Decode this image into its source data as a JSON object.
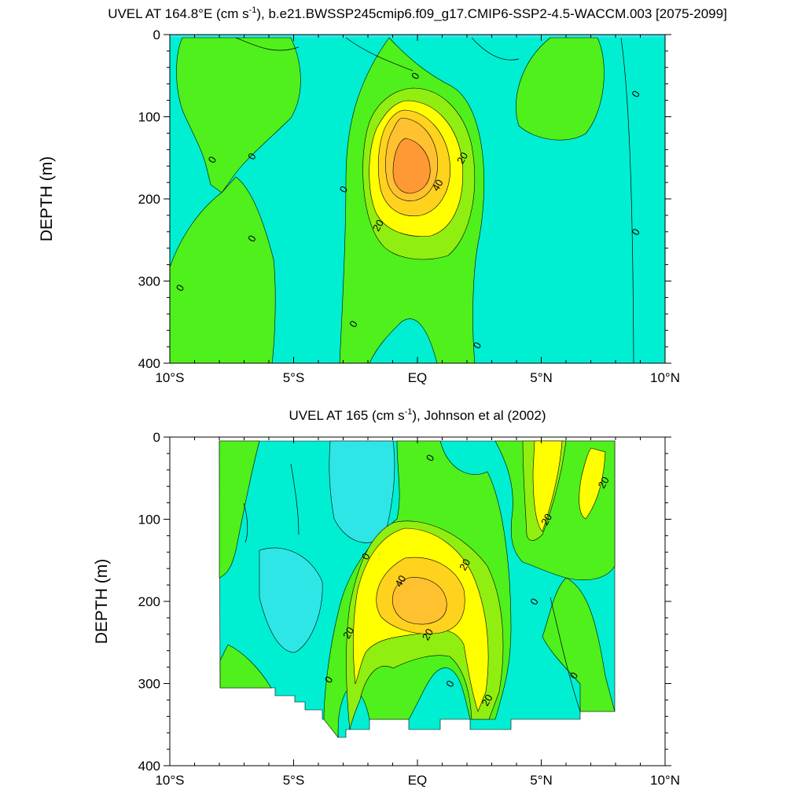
{
  "chart_data": [
    {
      "type": "heatmap",
      "title": "UVEL AT 164.8°E (cm s⁻¹), b.e21.BWSSP245cmip6.f09_g17.CMIP6-SSP2-4.5-WACCM.003 [2075-2099]",
      "xlabel": "",
      "ylabel": "DEPTH (m)",
      "xlim": [
        -10,
        10
      ],
      "ylim": [
        400,
        0
      ],
      "x_ticks": [
        -10,
        -5,
        0,
        5,
        10
      ],
      "x_tick_labels": [
        "10°S",
        "5°S",
        "EQ",
        "5°N",
        "10°N"
      ],
      "y_ticks": [
        0,
        100,
        200,
        300,
        400
      ],
      "y_tick_labels": [
        "0",
        "100",
        "200",
        "300",
        "400"
      ],
      "contour_interval": 10,
      "contour_labels": [
        {
          "text": "0",
          "x": -9.6,
          "y": 308
        },
        {
          "text": "0",
          "x": -8.3,
          "y": 152
        },
        {
          "text": "0",
          "x": -6.7,
          "y": 148
        },
        {
          "text": "0",
          "x": -6.7,
          "y": 248
        },
        {
          "text": "0",
          "x": -3.0,
          "y": 188
        },
        {
          "text": "0",
          "x": -2.6,
          "y": 352
        },
        {
          "text": "0",
          "x": -0.1,
          "y": 50
        },
        {
          "text": "20",
          "x": 1.8,
          "y": 150
        },
        {
          "text": "40",
          "x": 0.8,
          "y": 183
        },
        {
          "text": "20",
          "x": -1.6,
          "y": 232
        },
        {
          "text": "0",
          "x": 2.4,
          "y": 378
        },
        {
          "text": "0",
          "x": 8.8,
          "y": 72
        },
        {
          "text": "0",
          "x": 8.8,
          "y": 240
        }
      ]
    },
    {
      "type": "heatmap",
      "title": "UVEL AT 165 (cm s⁻¹), Johnson et al (2002)",
      "xlabel": "",
      "ylabel": "DEPTH (m)",
      "xlim": [
        -10,
        10
      ],
      "ylim": [
        400,
        0
      ],
      "x_ticks": [
        -10,
        -5,
        0,
        5,
        10
      ],
      "x_tick_labels": [
        "10°S",
        "5°S",
        "EQ",
        "5°N",
        "10°N"
      ],
      "y_ticks": [
        0,
        100,
        200,
        300,
        400
      ],
      "y_tick_labels": [
        "0",
        "100",
        "200",
        "300",
        "400"
      ],
      "contour_interval": 10,
      "data_xrange": [
        -8,
        8
      ],
      "contour_labels": [
        {
          "text": "0",
          "x": 0.5,
          "y": 25
        },
        {
          "text": "0",
          "x": -2.1,
          "y": 145
        },
        {
          "text": "40",
          "x": -0.7,
          "y": 175
        },
        {
          "text": "20",
          "x": 1.9,
          "y": 155
        },
        {
          "text": "20",
          "x": -2.8,
          "y": 238
        },
        {
          "text": "20",
          "x": 0.4,
          "y": 240
        },
        {
          "text": "0",
          "x": -3.6,
          "y": 295
        },
        {
          "text": "0",
          "x": 1.3,
          "y": 300
        },
        {
          "text": "20",
          "x": 2.8,
          "y": 320
        },
        {
          "text": "20",
          "x": 5.2,
          "y": 100
        },
        {
          "text": "20",
          "x": 7.5,
          "y": 55
        },
        {
          "text": "0",
          "x": 4.7,
          "y": 200
        },
        {
          "text": "0",
          "x": 6.3,
          "y": 290
        }
      ]
    }
  ]
}
